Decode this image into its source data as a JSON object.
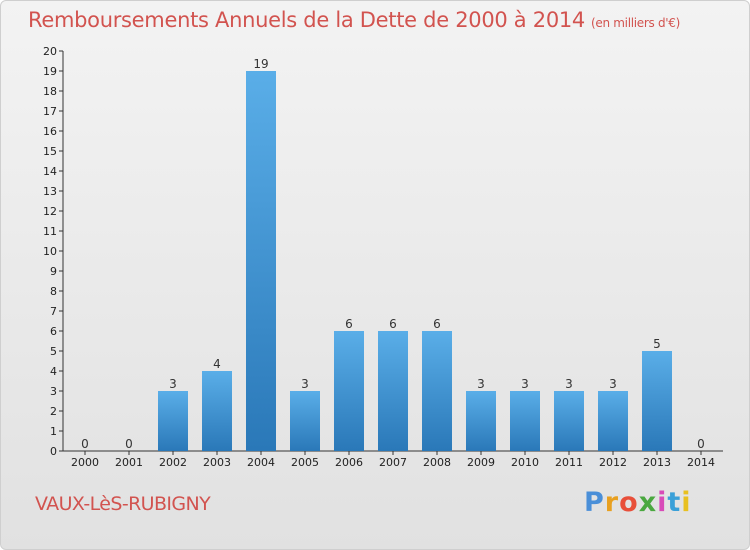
{
  "header": {
    "title": "Remboursements Annuels de la Dette de 2000 à 2014",
    "unit": "(en milliers d'€)"
  },
  "footer": {
    "commune": "VAUX-LèS-RUBIGNY",
    "logo": "Proxiti"
  },
  "colors": {
    "bar_light": "#5aaee8",
    "bar_dark": "#2a78b8",
    "title": "#d2534f"
  },
  "chart_data": {
    "type": "bar",
    "title": "Remboursements Annuels de la Dette de 2000 à 2014",
    "xlabel": "",
    "ylabel": "",
    "categories": [
      "2000",
      "2001",
      "2002",
      "2003",
      "2004",
      "2005",
      "2006",
      "2007",
      "2008",
      "2009",
      "2010",
      "2011",
      "2012",
      "2013",
      "2014"
    ],
    "values": [
      0,
      0,
      3,
      4,
      19,
      3,
      6,
      6,
      6,
      3,
      3,
      3,
      3,
      5,
      0
    ],
    "data_labels": [
      "0",
      "0",
      "3",
      "4",
      "19",
      "3",
      "6",
      "6",
      "6",
      "3",
      "3",
      "3",
      "3",
      "5",
      "0"
    ],
    "ylim": [
      0,
      20
    ],
    "yticks": [
      "0",
      "1",
      "2",
      "3",
      "4",
      "5",
      "6",
      "7",
      "8",
      "9",
      "10",
      "11",
      "12",
      "13",
      "14",
      "15",
      "16",
      "17",
      "18",
      "19",
      "20"
    ],
    "grid": false,
    "legend": "none"
  }
}
